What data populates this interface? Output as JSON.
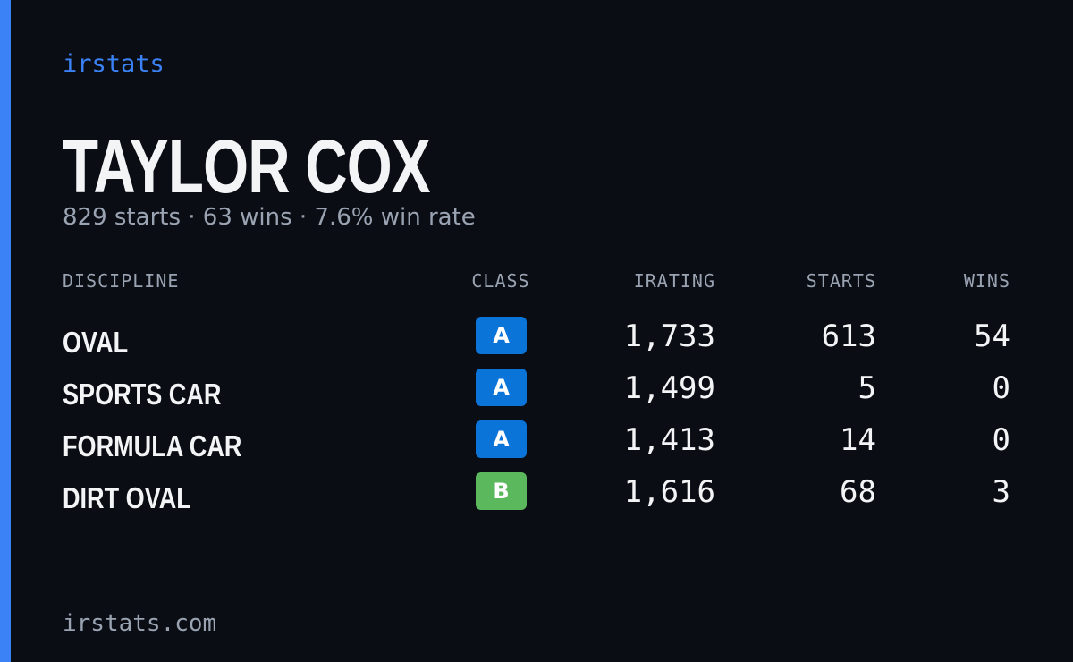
{
  "brand": "irstats",
  "driver": {
    "name": "TAYLOR COX",
    "summary": "829 starts · 63 wins · 7.6% win rate"
  },
  "table": {
    "headers": [
      "DISCIPLINE",
      "CLASS",
      "IRATING",
      "STARTS",
      "WINS"
    ],
    "rows": [
      {
        "discipline": "OVAL",
        "class": "A",
        "class_color": "#0b74d8",
        "irating": "1,733",
        "starts": 613,
        "wins": 54
      },
      {
        "discipline": "SPORTS CAR",
        "class": "A",
        "class_color": "#0b74d8",
        "irating": "1,499",
        "starts": 5,
        "wins": 0
      },
      {
        "discipline": "FORMULA CAR",
        "class": "A",
        "class_color": "#0b74d8",
        "irating": "1,413",
        "starts": 14,
        "wins": 0
      },
      {
        "discipline": "DIRT OVAL",
        "class": "B",
        "class_color": "#5cb85c",
        "irating": "1,616",
        "starts": 68,
        "wins": 3
      }
    ]
  },
  "footer": "irstats.com"
}
